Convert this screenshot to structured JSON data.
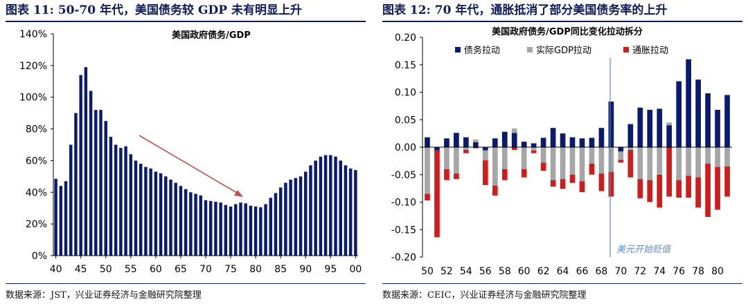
{
  "titles": {
    "left": "图表 11: 50-70 年代，美国债务较 GDP 未有明显上升",
    "right": "图表 12: 70 年代，通胀抵消了部分美国债务率的上升"
  },
  "sources": {
    "left": "数据来源：JST，兴业证券经济与金融研究院整理",
    "right": "数据来源：CEIC，兴业证券经济与金融研究院整理"
  },
  "colors": {
    "navy": "#0a1a6e",
    "gray": "#a6a6a6",
    "red": "#d01c1c",
    "arrow": "#c0504d",
    "vline": "#5b8bc9"
  },
  "chart_data": [
    {
      "type": "bar",
      "title": "美国政府债务/GDP",
      "xlabel": "",
      "ylabel": "",
      "ylim": [
        0,
        140
      ],
      "y_ticks": [
        "0%",
        "20%",
        "40%",
        "60%",
        "80%",
        "100%",
        "120%",
        "140%"
      ],
      "x_tick_labels": [
        "40",
        "45",
        "50",
        "55",
        "60",
        "65",
        "70",
        "75",
        "80",
        "85",
        "90",
        "95",
        "00"
      ],
      "x_start_year": 1940,
      "series": [
        {
          "values": [
            48.5,
            44,
            47,
            70,
            90,
            114,
            119,
            104,
            92,
            92,
            85,
            75,
            70,
            68,
            69,
            64,
            60,
            58,
            56,
            55,
            53,
            52,
            50,
            48,
            46,
            44,
            42,
            40,
            39,
            38,
            35,
            34.5,
            34,
            33.5,
            32,
            31,
            32.5,
            33.5,
            33,
            31.5,
            31,
            30.5,
            32.5,
            36.5,
            39.5,
            43,
            46,
            48,
            49,
            50,
            53,
            57,
            60,
            62.5,
            63.5,
            63.5,
            62.5,
            60,
            57,
            55,
            54
          ]
        }
      ],
      "annotation": "arrow"
    },
    {
      "type": "bar",
      "title": "美国政府债务/GDP同比变化拉动拆分",
      "xlabel": "",
      "ylabel": "",
      "ylim": [
        -0.2,
        0.2
      ],
      "y_ticks": [
        "-0.20",
        "-0.15",
        "-0.10",
        "-0.05",
        "0.00",
        "0.05",
        "0.10",
        "0.15",
        "0.20"
      ],
      "x_tick_labels": [
        "50",
        "52",
        "54",
        "56",
        "58",
        "60",
        "62",
        "64",
        "66",
        "68",
        "70",
        "72",
        "74",
        "76",
        "78",
        "80"
      ],
      "x_start_year": 1950,
      "stacked": true,
      "legend_placement": "top",
      "series": [
        {
          "name": "债务拉动",
          "values": [
            0.018,
            -0.006,
            0.016,
            0.026,
            0.018,
            0.009,
            -0.006,
            0.016,
            0.028,
            0.026,
            0.01,
            0.007,
            0.017,
            0.035,
            0.025,
            0.018,
            0.016,
            0.017,
            0.035,
            0.083,
            -0.008,
            0.042,
            0.072,
            0.068,
            0.07,
            0.04,
            0.12,
            0.16,
            0.123,
            0.098,
            0.068,
            0.095
          ]
        },
        {
          "name": "实际GDP拉动",
          "values": [
            -0.085,
            0,
            -0.04,
            -0.048,
            -0.005,
            0.005,
            -0.018,
            -0.07,
            -0.04,
            0.008,
            -0.04,
            -0.006,
            -0.028,
            -0.06,
            -0.058,
            -0.05,
            -0.062,
            -0.03,
            -0.048,
            -0.045,
            -0.015,
            -0.005,
            -0.058,
            -0.06,
            -0.05,
            0.005,
            -0.06,
            -0.052,
            -0.055,
            -0.03,
            -0.036,
            -0.035
          ]
        },
        {
          "name": "通胀拉动",
          "values": [
            -0.012,
            -0.158,
            -0.02,
            -0.01,
            -0.006,
            -0.002,
            -0.045,
            -0.018,
            -0.02,
            -0.005,
            -0.015,
            -0.005,
            -0.015,
            -0.012,
            -0.018,
            -0.015,
            -0.02,
            -0.02,
            -0.032,
            -0.045,
            -0.005,
            -0.05,
            -0.035,
            -0.04,
            -0.06,
            -0.09,
            -0.032,
            -0.04,
            -0.055,
            -0.097,
            -0.078,
            -0.055
          ]
        }
      ],
      "annotation": "美元开始贬值",
      "annotation_year": 1968
    }
  ]
}
